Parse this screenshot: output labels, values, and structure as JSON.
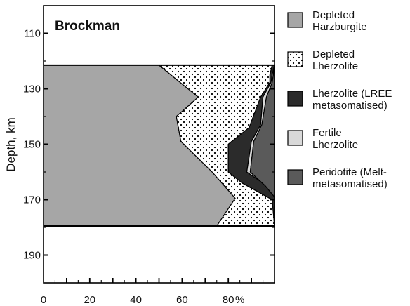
{
  "chart_data": {
    "type": "area",
    "title": "Brockman",
    "ylabel": "Depth, km",
    "x_unit": "%",
    "xlim": [
      0,
      100
    ],
    "ylim": [
      100,
      200
    ],
    "x_ticks": [
      0,
      20,
      40,
      60,
      80
    ],
    "y_ticks": [
      110,
      130,
      150,
      170,
      190
    ],
    "section_top": 121.5,
    "section_bottom": 179.5,
    "series": [
      {
        "name": "Depleted Harzburgite",
        "fill": "#a6a6a6",
        "pattern": "solid",
        "legend_lines": [
          "Depleted",
          "Harzburgite"
        ],
        "points": [
          [
            50,
            121.5
          ],
          [
            67,
            133
          ],
          [
            57.5,
            140
          ],
          [
            59.5,
            149
          ],
          [
            73,
            160
          ],
          [
            83,
            169.5
          ],
          [
            75,
            179.5
          ]
        ]
      },
      {
        "name": "Depleted Lherzolite",
        "fill": "#ffffff",
        "pattern": "dots",
        "legend_lines": [
          "Depleted",
          "Lherzolite"
        ],
        "points": [
          [
            99,
            121.5
          ],
          [
            99,
            121.5
          ],
          [
            98,
            125
          ],
          [
            98,
            127.7
          ],
          [
            94,
            133
          ],
          [
            89,
            144
          ],
          [
            80,
            150
          ],
          [
            80,
            160
          ],
          [
            86,
            164
          ],
          [
            99,
            170
          ],
          [
            100,
            179.5
          ]
        ]
      },
      {
        "name": "Lherzolite (LREE metasomatised)",
        "fill": "#2b2b2b",
        "pattern": "solid",
        "legend_lines": [
          "Lherzolite (LREE",
          "metasomatised)"
        ],
        "points": [
          [
            100,
            121.5
          ],
          [
            100,
            121.5
          ],
          [
            99,
            125
          ],
          [
            98.5,
            127.7
          ],
          [
            95,
            133
          ],
          [
            94,
            143
          ],
          [
            90,
            149
          ],
          [
            88,
            160
          ],
          [
            95,
            164
          ],
          [
            100,
            169
          ],
          [
            100,
            179.5
          ]
        ]
      },
      {
        "name": "Fertile Lherzolite",
        "fill": "#d9d9d9",
        "pattern": "solid",
        "legend_lines": [
          "Fertile",
          "Lherzolite"
        ],
        "points": [
          [
            100,
            121.5
          ],
          [
            100,
            121.5
          ],
          [
            99.5,
            125
          ],
          [
            99,
            127.7
          ],
          [
            96.5,
            133
          ],
          [
            94.5,
            143
          ],
          [
            91,
            149
          ],
          [
            89.5,
            160
          ],
          [
            96,
            165
          ],
          [
            100,
            169
          ],
          [
            100,
            179.5
          ]
        ]
      },
      {
        "name": "Peridotite (Melt-metasomatised)",
        "fill": "#5a5a5a",
        "pattern": "solid",
        "legend_lines": [
          "Peridotite (Melt-",
          "metasomatised)"
        ],
        "points": [
          [
            100,
            121.5
          ],
          [
            100,
            121.5
          ],
          [
            100,
            125
          ],
          [
            100,
            127.7
          ],
          [
            100,
            133
          ],
          [
            100,
            143
          ],
          [
            100,
            149
          ],
          [
            100,
            160
          ],
          [
            100,
            165
          ],
          [
            100,
            169
          ],
          [
            100,
            179.5
          ]
        ]
      }
    ]
  }
}
